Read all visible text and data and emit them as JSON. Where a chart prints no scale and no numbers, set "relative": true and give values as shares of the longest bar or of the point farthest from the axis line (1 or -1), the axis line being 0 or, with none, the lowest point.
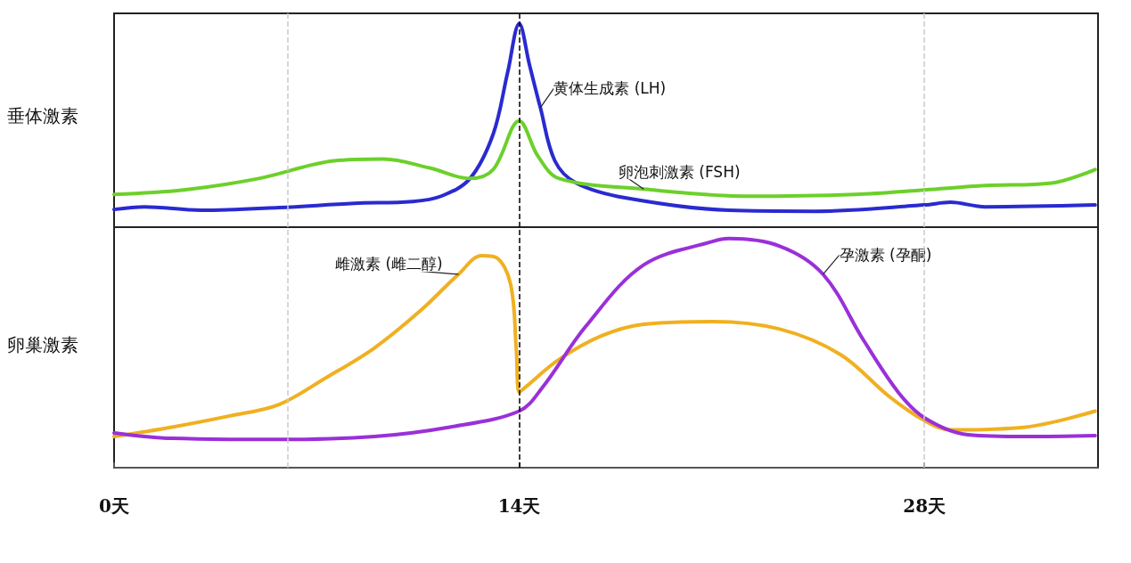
{
  "chart_data": [
    {
      "type": "line",
      "relative": true,
      "ylabel": "垂体激素",
      "xlim": [
        0,
        34
      ],
      "tick_labels": false,
      "marker": "none",
      "ref_lines": [
        {
          "axis": "x",
          "value": 6,
          "color": "#cccccc",
          "line_style": "dashed"
        },
        {
          "axis": "x",
          "value": 14,
          "color": "#000000",
          "line_style": "dashed"
        },
        {
          "axis": "x",
          "value": 28,
          "color": "#cccccc",
          "line_style": "dashed"
        }
      ],
      "series": [
        {
          "name": "黄体生成素 (LH)",
          "color": "#2a2ad0",
          "x": [
            0,
            1.05,
            3.0,
            5.7,
            8.3,
            10.3,
            11.3,
            12.3,
            13.1,
            13.6,
            14,
            14.35,
            14.73,
            15.23,
            15.97,
            17.7,
            21.25,
            24.2,
            28.0,
            28.9,
            30.1,
            33.9
          ],
          "values": [
            0.087,
            0.1,
            0.083,
            0.096,
            0.117,
            0.126,
            0.152,
            0.239,
            0.457,
            0.76,
            1.0,
            0.8,
            0.587,
            0.326,
            0.217,
            0.143,
            0.083,
            0.078,
            0.109,
            0.122,
            0.1,
            0.109
          ]
        },
        {
          "name": "卵泡刺激素 (FSH)",
          "color": "#6cd02a",
          "x": [
            0,
            2.4,
            5.0,
            7.6,
            9.3,
            10.9,
            12.3,
            13.1,
            14,
            14.65,
            15.38,
            18.3,
            21.8,
            25.6,
            28.0,
            30.1,
            32.4,
            33.9
          ],
          "values": [
            0.161,
            0.183,
            0.239,
            0.326,
            0.335,
            0.291,
            0.239,
            0.283,
            0.522,
            0.348,
            0.239,
            0.187,
            0.152,
            0.161,
            0.183,
            0.204,
            0.217,
            0.283
          ]
        }
      ]
    },
    {
      "type": "line",
      "relative": true,
      "ylabel": "卵巢激素",
      "xlim": [
        0,
        34
      ],
      "xticks": [
        {
          "value": 0,
          "label": "0天"
        },
        {
          "value": 14,
          "label": "14天"
        },
        {
          "value": 28,
          "label": "28天"
        }
      ],
      "tick_labels": "x",
      "marker": "none",
      "ref_lines": [
        {
          "axis": "x",
          "value": 6,
          "color": "#cccccc",
          "line_style": "dashed"
        },
        {
          "axis": "x",
          "value": 14,
          "color": "#000000",
          "line_style": "dashed"
        },
        {
          "axis": "x",
          "value": 28,
          "color": "#cccccc",
          "line_style": "dashed"
        }
      ],
      "series": [
        {
          "name": "雌激素 (雌二醇)",
          "color": "#f0b020",
          "x": [
            0,
            2.0,
            4.0,
            5.7,
            7.3,
            9.0,
            10.6,
            11.9,
            12.7,
            13.2,
            13.7,
            13.9,
            14.0,
            14.2,
            15.38,
            16.85,
            18.3,
            20.7,
            23.0,
            25.1,
            26.8,
            28.0,
            28.9,
            31.5,
            33.9
          ],
          "values": [
            0.136,
            0.177,
            0.226,
            0.276,
            0.391,
            0.523,
            0.687,
            0.844,
            0.926,
            0.918,
            0.802,
            0.514,
            0.329,
            0.35,
            0.473,
            0.576,
            0.626,
            0.638,
            0.605,
            0.494,
            0.309,
            0.206,
            0.165,
            0.177,
            0.247
          ]
        },
        {
          "name": "孕激素 (孕酮)",
          "color": "#9a30d8",
          "x": [
            0,
            2.0,
            5.7,
            9.0,
            11.6,
            14,
            14.8,
            16.3,
            18.3,
            20.7,
            21.25,
            23.0,
            24.5,
            25.9,
            27.1,
            28.0,
            29.5,
            31.5,
            33.9
          ],
          "values": [
            0.152,
            0.128,
            0.123,
            0.136,
            0.177,
            0.247,
            0.35,
            0.617,
            0.885,
            0.988,
            1.0,
            0.967,
            0.844,
            0.556,
            0.329,
            0.218,
            0.144,
            0.136,
            0.14
          ]
        }
      ]
    }
  ]
}
